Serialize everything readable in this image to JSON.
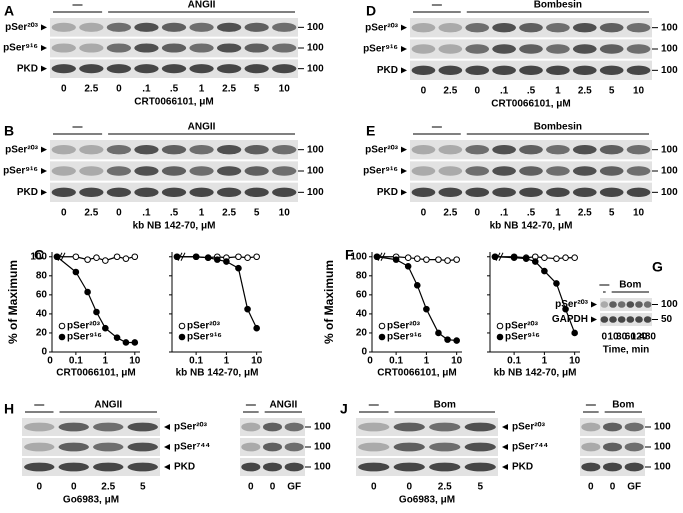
{
  "blots": [
    {
      "letter": "A",
      "groups": [
        {
          "label": "—",
          "lanes": [
            "0",
            "2.5"
          ]
        },
        {
          "label": "ANGII",
          "lanes": [
            "0",
            ".1",
            ".5",
            "1",
            "2.5",
            "5",
            "10"
          ]
        }
      ],
      "rows": [
        {
          "label": "pSer²⁰³",
          "marker": "100"
        },
        {
          "label": "pSer⁹¹⁶",
          "marker": "100"
        },
        {
          "label": "PKD",
          "marker": "100"
        }
      ],
      "x_label": "CRT0066101, μM"
    },
    {
      "letter": "B",
      "groups": [
        {
          "label": "—",
          "lanes": [
            "0",
            "2.5"
          ]
        },
        {
          "label": "ANGII",
          "lanes": [
            "0",
            ".1",
            ".5",
            "1",
            "2.5",
            "5",
            "10"
          ]
        }
      ],
      "rows": [
        {
          "label": "pSer²⁰³",
          "marker": "100"
        },
        {
          "label": "pSer⁹¹⁶",
          "marker": "100"
        },
        {
          "label": "PKD",
          "marker": "100"
        }
      ],
      "x_label": "kb NB 142-70, μM"
    },
    {
      "letter": "D",
      "groups": [
        {
          "label": "—",
          "lanes": [
            "0",
            "2.5"
          ]
        },
        {
          "label": "Bombesin",
          "lanes": [
            "0",
            ".1",
            ".5",
            "1",
            "2.5",
            "5",
            "10"
          ]
        }
      ],
      "rows": [
        {
          "label": "pSer²⁰³",
          "marker": "100"
        },
        {
          "label": "pSer⁹¹⁶",
          "marker": "100"
        },
        {
          "label": "PKD",
          "marker": "100"
        }
      ],
      "x_label": "CRT0066101, μM"
    },
    {
      "letter": "E",
      "groups": [
        {
          "label": "—",
          "lanes": [
            "0",
            "2.5"
          ]
        },
        {
          "label": "Bombesin",
          "lanes": [
            "0",
            ".1",
            ".5",
            "1",
            "2.5",
            "5",
            "10"
          ]
        }
      ],
      "rows": [
        {
          "label": "pSer²⁰³",
          "marker": "100"
        },
        {
          "label": "pSer⁹¹⁶",
          "marker": "100"
        },
        {
          "label": "PKD",
          "marker": "100"
        }
      ],
      "x_label": "kb NB 142-70, μM"
    },
    {
      "letter": "G",
      "groups": [
        {
          "label": "—",
          "lanes": [
            "0"
          ]
        },
        {
          "label": "Bom",
          "lanes": [
            "10",
            "30",
            "60",
            "120",
            "480"
          ]
        }
      ],
      "rows": [
        {
          "label": "pSer²⁰³",
          "marker": "100"
        },
        {
          "label": "GAPDH",
          "marker": "50"
        }
      ],
      "x_label": "Time, min"
    },
    {
      "letter": "H",
      "groups": [
        {
          "label": "—",
          "lanes": [
            "0"
          ]
        },
        {
          "label": "ANGII",
          "lanes": [
            "0",
            "2.5",
            "5"
          ]
        }
      ],
      "rows": [
        {
          "label": "pSer²⁰³"
        },
        {
          "label": "pSer⁷⁴⁴"
        },
        {
          "label": "PKD"
        }
      ],
      "label_side": "right",
      "x_label": "Go6983, μM"
    },
    {
      "groups": [
        {
          "label": "—",
          "lanes": [
            "0"
          ]
        },
        {
          "label": "ANGII",
          "lanes": [
            "0",
            "GF"
          ]
        }
      ],
      "rows": [
        {
          "marker": "100"
        },
        {
          "marker": "100"
        },
        {
          "marker": "100"
        }
      ]
    },
    {
      "letter": "J",
      "groups": [
        {
          "label": "—",
          "lanes": [
            "0"
          ]
        },
        {
          "label": "Bom",
          "lanes": [
            "0",
            "2.5",
            "5"
          ]
        }
      ],
      "rows": [
        {
          "label": "pSer²⁰³"
        },
        {
          "label": "pSer⁷⁴⁴"
        },
        {
          "label": "PKD"
        }
      ],
      "label_side": "right",
      "x_label": "Go6983, μM"
    },
    {
      "groups": [
        {
          "label": "—",
          "lanes": [
            "0"
          ]
        },
        {
          "label": "Bom",
          "lanes": [
            "0",
            "GF"
          ]
        }
      ],
      "rows": [
        {
          "marker": "100"
        },
        {
          "marker": "100"
        },
        {
          "marker": "100"
        }
      ]
    }
  ],
  "chart_data": [
    {
      "type": "scatter",
      "letter": "C",
      "ylabel": "% of Maximum",
      "x_label": "CRT0066101, μM",
      "log_x": true,
      "zero_label": "0",
      "x": [
        0,
        0.1,
        0.25,
        0.5,
        1,
        2.5,
        5,
        10
      ],
      "xlim": [
        0.05,
        15
      ],
      "xticks": [
        0.1,
        1,
        10
      ],
      "ylim": [
        0,
        105
      ],
      "yticks": [
        0,
        20,
        40,
        60,
        80,
        100
      ],
      "show_ytick_labels": true,
      "series": [
        {
          "name": "pSer²⁰³",
          "color": "#ffffff",
          "values": [
            100,
            100,
            97,
            99,
            96,
            100,
            98,
            100
          ]
        },
        {
          "name": "pSer⁹¹⁶",
          "color": "#000000",
          "values": [
            100,
            84,
            63,
            42,
            25,
            15,
            10,
            10
          ]
        }
      ]
    },
    {
      "type": "scatter",
      "x_label": "kb NB 142-70, μM",
      "log_x": true,
      "x": [
        0,
        0.1,
        0.25,
        0.5,
        1,
        2.5,
        5,
        10
      ],
      "xlim": [
        0.05,
        15
      ],
      "xticks": [
        0.1,
        1,
        10
      ],
      "ylim": [
        0,
        105
      ],
      "yticks": [
        0,
        20,
        40,
        60,
        80,
        100
      ],
      "show_ytick_labels": false,
      "series": [
        {
          "name": "pSer²⁰³",
          "color": "#ffffff",
          "values": [
            100,
            100,
            99,
            100,
            99,
            100,
            99,
            100
          ]
        },
        {
          "name": "pSer⁹¹⁶",
          "color": "#000000",
          "values": [
            100,
            100,
            99,
            97,
            95,
            88,
            45,
            25
          ]
        }
      ]
    },
    {
      "type": "scatter",
      "letter": "F",
      "ylabel": "% of Maximum",
      "x_label": "CRT0066101, μM",
      "log_x": true,
      "zero_label": "0",
      "x": [
        0,
        0.1,
        0.25,
        0.5,
        1,
        2.5,
        5,
        10
      ],
      "xlim": [
        0.05,
        15
      ],
      "xticks": [
        0.1,
        1,
        10
      ],
      "ylim": [
        0,
        105
      ],
      "yticks": [
        0,
        20,
        40,
        60,
        80,
        100
      ],
      "show_ytick_labels": true,
      "series": [
        {
          "name": "pSer²⁰³",
          "color": "#ffffff",
          "values": [
            100,
            100,
            99,
            98,
            97,
            97,
            96,
            97
          ]
        },
        {
          "name": "pSer⁹¹⁶",
          "color": "#000000",
          "values": [
            100,
            97,
            90,
            70,
            45,
            20,
            13,
            12
          ]
        }
      ]
    },
    {
      "type": "scatter",
      "x_label": "kb NB 142-70, μM",
      "log_x": true,
      "x": [
        0,
        0.1,
        0.25,
        0.5,
        1,
        2.5,
        5,
        10
      ],
      "xlim": [
        0.05,
        15
      ],
      "xticks": [
        0.1,
        1,
        10
      ],
      "ylim": [
        0,
        105
      ],
      "yticks": [
        0,
        20,
        40,
        60,
        80,
        100
      ],
      "show_ytick_labels": false,
      "series": [
        {
          "name": "pSer²⁰³",
          "color": "#ffffff",
          "values": [
            100,
            100,
            99,
            100,
            99,
            98,
            99,
            99
          ]
        },
        {
          "name": "pSer⁹¹⁶",
          "color": "#000000",
          "values": [
            100,
            99,
            98,
            95,
            85,
            72,
            45,
            20
          ]
        }
      ]
    }
  ]
}
